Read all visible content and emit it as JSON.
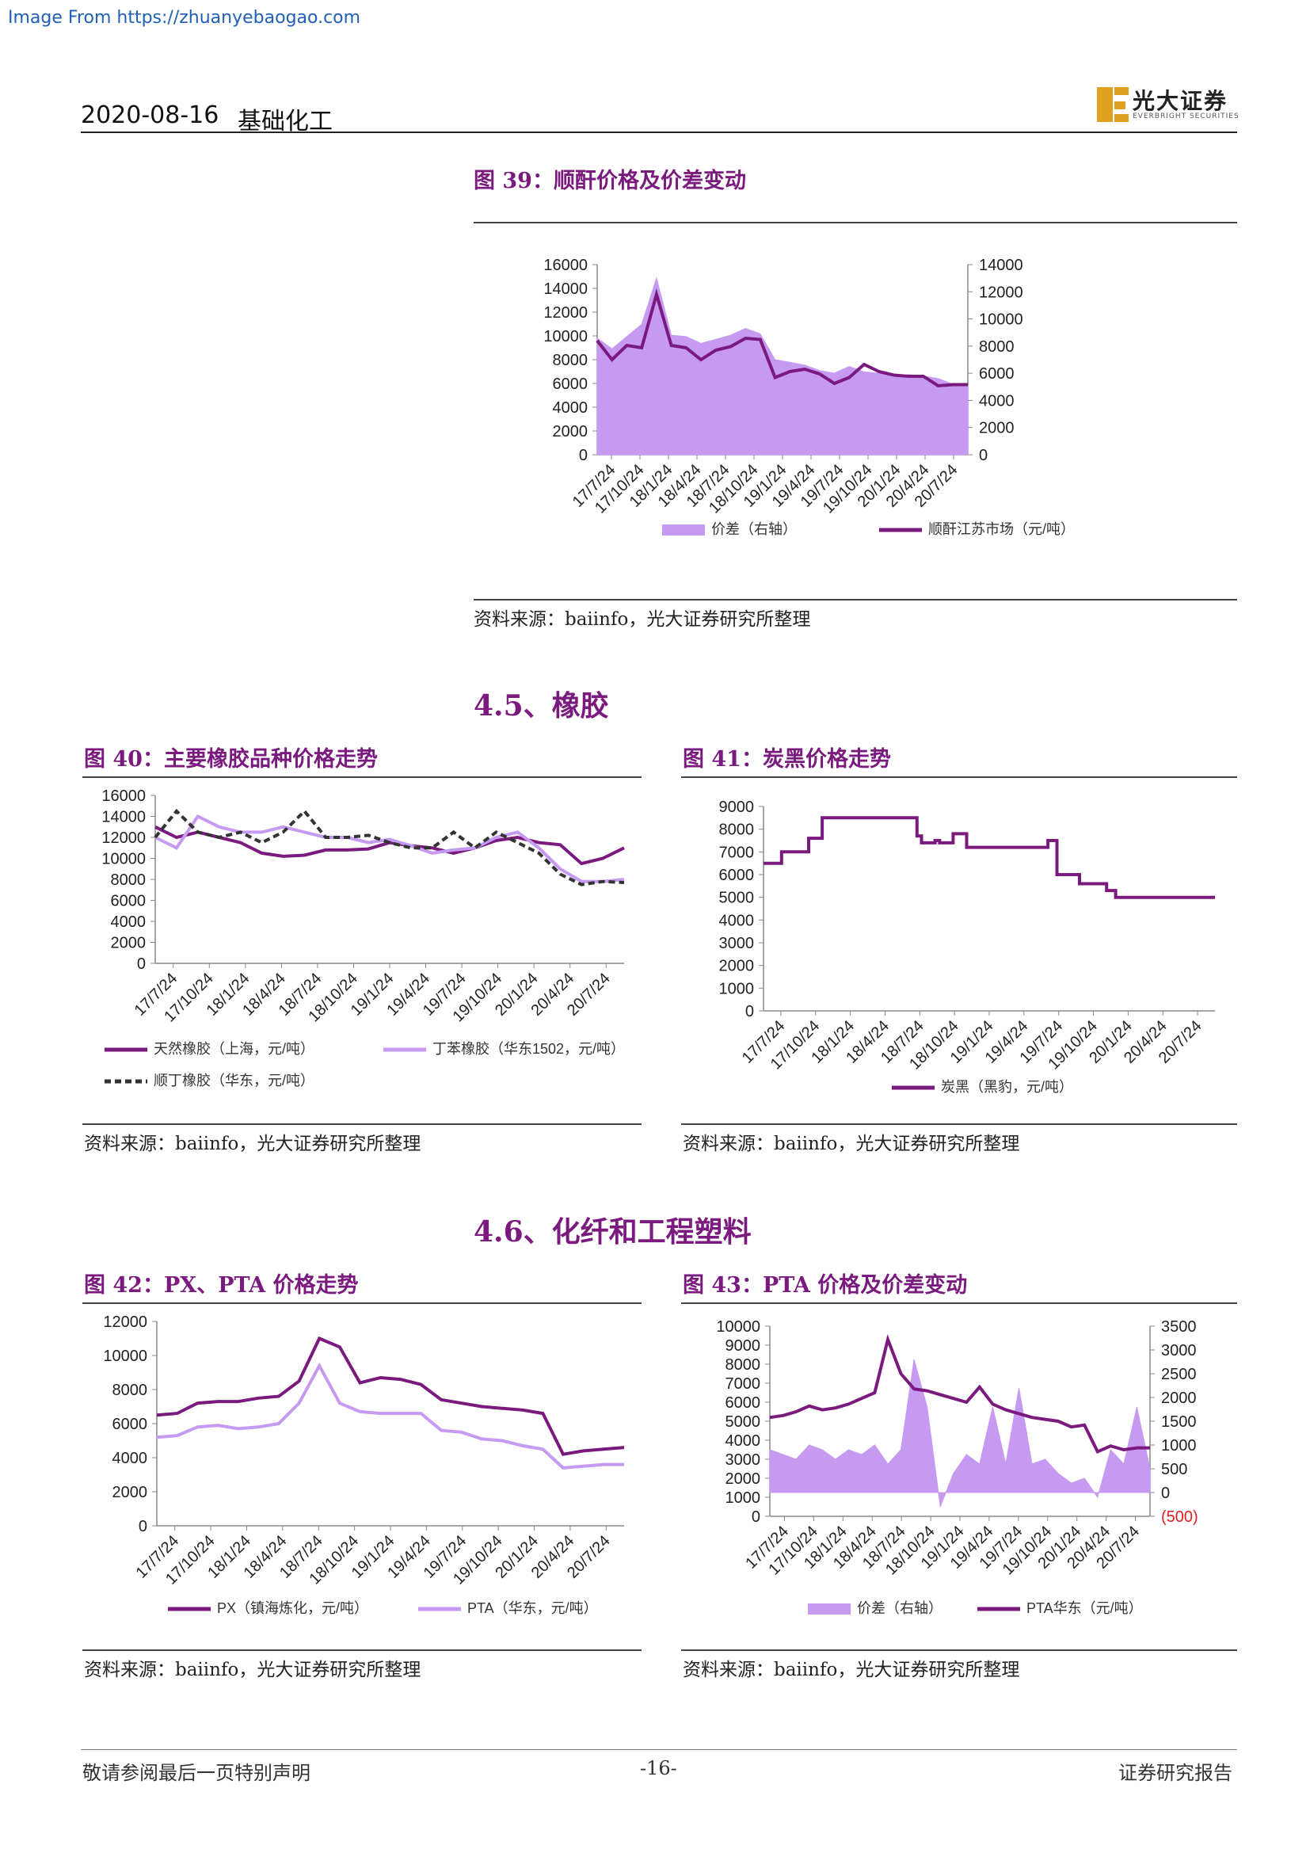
{
  "watermark": "Image From https://zhuanyebaogao.com",
  "header": {
    "date": "2020-08-16",
    "sector": "基础化工",
    "logo_cn": "光大证券",
    "logo_en": "EVERBRIGHT SECURITIES"
  },
  "sections": {
    "s45": "4.5、橡胶",
    "s46": "4.6、化纤和工程塑料"
  },
  "source_text": "资料来源：baiinfo，光大证券研究所整理",
  "footer": {
    "left": "敬请参阅最后一页特别声明",
    "center": "-16-",
    "right": "证券研究报告"
  },
  "colors": {
    "purple": "#7a1a7e",
    "lavender": "#c79af2",
    "black": "#222222",
    "red": "#e02020"
  },
  "chart_data": [
    {
      "id": "fig39",
      "type": "area",
      "title": "图 39：顺酐价格及价差变动",
      "x_ticks": [
        "17/7/24",
        "17/10/24",
        "18/1/24",
        "18/4/24",
        "18/7/24",
        "18/10/24",
        "19/1/24",
        "19/4/24",
        "19/7/24",
        "19/10/24",
        "20/1/24",
        "20/4/24",
        "20/7/24"
      ],
      "y_left": {
        "ticks": [
          "16000",
          "14000",
          "12000",
          "10000",
          "8000",
          "6000",
          "4000",
          "2000",
          "0"
        ],
        "lim": [
          0,
          16000
        ]
      },
      "y_right": {
        "ticks": [
          "14000",
          "12000",
          "10000",
          "8000",
          "6000",
          "4000",
          "2000",
          "0"
        ],
        "lim": [
          0,
          14000
        ]
      },
      "series": [
        {
          "name": "价差（右轴）",
          "kind": "area",
          "axis": "right",
          "color": "#c79af2",
          "values": [
            8600,
            7800,
            8700,
            9600,
            13000,
            8800,
            8700,
            8200,
            8500,
            8800,
            9300,
            8900,
            7000,
            6800,
            6600,
            6200,
            6000,
            6500,
            6100,
            6000,
            5700,
            5900,
            5800,
            5600,
            5200,
            5000
          ]
        },
        {
          "name": "顺酐江苏市场（元/吨）",
          "kind": "line",
          "axis": "left",
          "color": "#7a1a7e",
          "values": [
            9600,
            8000,
            9200,
            9000,
            13500,
            9200,
            9000,
            8000,
            8800,
            9100,
            9800,
            9700,
            6500,
            7000,
            7200,
            6800,
            6000,
            6500,
            7600,
            7000,
            6700,
            6600,
            6600,
            5800,
            5900,
            5900
          ]
        }
      ]
    },
    {
      "id": "fig40",
      "type": "line",
      "title": "图 40：主要橡胶品种价格走势",
      "x_ticks": [
        "17/7/24",
        "17/10/24",
        "18/1/24",
        "18/4/24",
        "18/7/24",
        "18/10/24",
        "19/1/24",
        "19/4/24",
        "19/7/24",
        "19/10/24",
        "20/1/24",
        "20/4/24",
        "20/7/24"
      ],
      "y": {
        "ticks": [
          "16000",
          "14000",
          "12000",
          "10000",
          "8000",
          "6000",
          "4000",
          "2000",
          "0"
        ],
        "lim": [
          0,
          16000
        ]
      },
      "series": [
        {
          "name": "天然橡胶（上海，元/吨）",
          "color": "#7a1a7e",
          "dash": "",
          "values": [
            13000,
            12000,
            12500,
            12000,
            11500,
            10500,
            10200,
            10300,
            10800,
            10800,
            10900,
            11500,
            11200,
            11000,
            10500,
            11000,
            11700,
            12000,
            11500,
            11300,
            9500,
            10000,
            11000
          ]
        },
        {
          "name": "丁苯橡胶（华东1502，元/吨）",
          "color": "#c79af2",
          "dash": "",
          "values": [
            12000,
            11000,
            14000,
            13000,
            12500,
            12500,
            13000,
            12500,
            12000,
            12000,
            11500,
            11800,
            11200,
            10500,
            10800,
            11000,
            12000,
            12500,
            11000,
            9000,
            7800,
            7800,
            8000
          ]
        },
        {
          "name": "顺丁橡胶（华东，元/吨）",
          "color": "#333333",
          "dash": "8 5",
          "values": [
            12000,
            14500,
            12500,
            12000,
            12500,
            11500,
            12500,
            14500,
            12000,
            12000,
            12200,
            11500,
            11000,
            11000,
            12500,
            11000,
            12500,
            11500,
            10500,
            8500,
            7500,
            7800,
            7700
          ]
        }
      ]
    },
    {
      "id": "fig41",
      "type": "line",
      "title": "图 41：炭黑价格走势",
      "x_ticks": [
        "17/7/24",
        "17/10/24",
        "18/1/24",
        "18/4/24",
        "18/7/24",
        "18/10/24",
        "19/1/24",
        "19/4/24",
        "19/7/24",
        "19/10/24",
        "20/1/24",
        "20/4/24",
        "20/7/24"
      ],
      "y": {
        "ticks": [
          "9000",
          "8000",
          "7000",
          "6000",
          "5000",
          "4000",
          "3000",
          "2000",
          "1000",
          "0"
        ],
        "lim": [
          0,
          9000
        ]
      },
      "series": [
        {
          "name": "炭黑（黑豹，元/吨）",
          "color": "#7a1a7e",
          "dash": "",
          "steps": [
            [
              0,
              6500
            ],
            [
              0.04,
              7000
            ],
            [
              0.1,
              7600
            ],
            [
              0.13,
              8500
            ],
            [
              0.32,
              8500
            ],
            [
              0.34,
              7700
            ],
            [
              0.35,
              7400
            ],
            [
              0.38,
              7500
            ],
            [
              0.39,
              7400
            ],
            [
              0.42,
              7800
            ],
            [
              0.45,
              7200
            ],
            [
              0.62,
              7200
            ],
            [
              0.63,
              7500
            ],
            [
              0.65,
              6000
            ],
            [
              0.7,
              5600
            ],
            [
              0.76,
              5300
            ],
            [
              0.78,
              5000
            ],
            [
              1.0,
              5000
            ]
          ]
        }
      ]
    },
    {
      "id": "fig42",
      "type": "line",
      "title": "图 42：PX、PTA 价格走势",
      "x_ticks": [
        "17/7/24",
        "17/10/24",
        "18/1/24",
        "18/4/24",
        "18/7/24",
        "18/10/24",
        "19/1/24",
        "19/4/24",
        "19/7/24",
        "19/10/24",
        "20/1/24",
        "20/4/24",
        "20/7/24"
      ],
      "y": {
        "ticks": [
          "12000",
          "10000",
          "8000",
          "6000",
          "4000",
          "2000",
          "0"
        ],
        "lim": [
          0,
          12000
        ]
      },
      "series": [
        {
          "name": "PX（镇海炼化，元/吨）",
          "color": "#7a1a7e",
          "dash": "",
          "values": [
            6500,
            6600,
            7200,
            7300,
            7300,
            7500,
            7600,
            8500,
            11000,
            10500,
            8400,
            8700,
            8600,
            8300,
            7400,
            7200,
            7000,
            6900,
            6800,
            6600,
            4200,
            4400,
            4500,
            4600
          ]
        },
        {
          "name": "PTA（华东，元/吨）",
          "color": "#c79af2",
          "dash": "",
          "values": [
            5200,
            5300,
            5800,
            5900,
            5700,
            5800,
            6000,
            7200,
            9400,
            7200,
            6700,
            6600,
            6600,
            6600,
            5600,
            5500,
            5100,
            5000,
            4700,
            4500,
            3400,
            3500,
            3600,
            3600
          ]
        }
      ]
    },
    {
      "id": "fig43",
      "type": "area",
      "title": "图 43：PTA 价格及价差变动",
      "x_ticks": [
        "17/7/24",
        "17/10/24",
        "18/1/24",
        "18/4/24",
        "18/7/24",
        "18/10/24",
        "19/1/24",
        "19/4/24",
        "19/7/24",
        "19/10/24",
        "20/1/24",
        "20/4/24",
        "20/7/24"
      ],
      "y_left": {
        "ticks": [
          "10000",
          "9000",
          "8000",
          "7000",
          "6000",
          "5000",
          "4000",
          "3000",
          "2000",
          "1000",
          "0"
        ],
        "lim": [
          0,
          10000
        ]
      },
      "y_right": {
        "ticks": [
          "3500",
          "3000",
          "2500",
          "2000",
          "1500",
          "1000",
          "500",
          "0",
          "(500)"
        ],
        "lim": [
          -500,
          3500
        ]
      },
      "series": [
        {
          "name": "价差（右轴）",
          "kind": "area",
          "axis": "right",
          "color": "#c79af2",
          "values": [
            900,
            800,
            700,
            1000,
            900,
            700,
            900,
            800,
            1000,
            600,
            900,
            2800,
            1800,
            -300,
            400,
            800,
            600,
            1800,
            600,
            2200,
            600,
            700,
            400,
            200,
            300,
            -100,
            900,
            600,
            1800,
            500
          ]
        },
        {
          "name": "PTA华东（元/吨）",
          "kind": "line",
          "axis": "left",
          "color": "#7a1a7e",
          "values": [
            5200,
            5300,
            5500,
            5800,
            5600,
            5700,
            5900,
            6200,
            6500,
            9300,
            7500,
            6700,
            6600,
            6400,
            6200,
            6000,
            6800,
            5900,
            5600,
            5400,
            5200,
            5100,
            5000,
            4700,
            4800,
            3400,
            3700,
            3500,
            3600,
            3600
          ]
        }
      ]
    }
  ],
  "legends": {
    "fig39": [
      "价差（右轴）",
      "顺酐江苏市场（元/吨）"
    ],
    "fig40": [
      "天然橡胶（上海，元/吨）",
      "丁苯橡胶（华东1502，元/吨）",
      "顺丁橡胶（华东，元/吨）"
    ],
    "fig41": [
      "炭黑（黑豹，元/吨）"
    ],
    "fig42": [
      "PX（镇海炼化，元/吨）",
      "PTA（华东，元/吨）"
    ],
    "fig43": [
      "价差（右轴）",
      "PTA华东（元/吨）"
    ]
  }
}
